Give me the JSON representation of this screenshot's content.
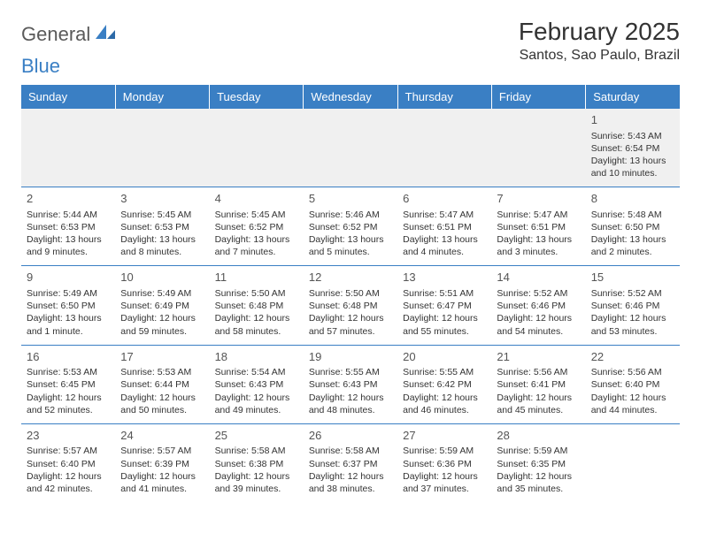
{
  "logo": {
    "text1": "General",
    "text2": "Blue"
  },
  "title": "February 2025",
  "location": "Santos, Sao Paulo, Brazil",
  "colors": {
    "header_bg": "#3a7fc4",
    "header_text": "#ffffff",
    "border": "#3a7fc4",
    "firstrow_bg": "#f0f0f0",
    "body_text": "#333333"
  },
  "day_headers": [
    "Sunday",
    "Monday",
    "Tuesday",
    "Wednesday",
    "Thursday",
    "Friday",
    "Saturday"
  ],
  "weeks": [
    [
      null,
      null,
      null,
      null,
      null,
      null,
      {
        "n": "1",
        "sr": "5:43 AM",
        "ss": "6:54 PM",
        "dl": "13 hours and 10 minutes."
      }
    ],
    [
      {
        "n": "2",
        "sr": "5:44 AM",
        "ss": "6:53 PM",
        "dl": "13 hours and 9 minutes."
      },
      {
        "n": "3",
        "sr": "5:45 AM",
        "ss": "6:53 PM",
        "dl": "13 hours and 8 minutes."
      },
      {
        "n": "4",
        "sr": "5:45 AM",
        "ss": "6:52 PM",
        "dl": "13 hours and 7 minutes."
      },
      {
        "n": "5",
        "sr": "5:46 AM",
        "ss": "6:52 PM",
        "dl": "13 hours and 5 minutes."
      },
      {
        "n": "6",
        "sr": "5:47 AM",
        "ss": "6:51 PM",
        "dl": "13 hours and 4 minutes."
      },
      {
        "n": "7",
        "sr": "5:47 AM",
        "ss": "6:51 PM",
        "dl": "13 hours and 3 minutes."
      },
      {
        "n": "8",
        "sr": "5:48 AM",
        "ss": "6:50 PM",
        "dl": "13 hours and 2 minutes."
      }
    ],
    [
      {
        "n": "9",
        "sr": "5:49 AM",
        "ss": "6:50 PM",
        "dl": "13 hours and 1 minute."
      },
      {
        "n": "10",
        "sr": "5:49 AM",
        "ss": "6:49 PM",
        "dl": "12 hours and 59 minutes."
      },
      {
        "n": "11",
        "sr": "5:50 AM",
        "ss": "6:48 PM",
        "dl": "12 hours and 58 minutes."
      },
      {
        "n": "12",
        "sr": "5:50 AM",
        "ss": "6:48 PM",
        "dl": "12 hours and 57 minutes."
      },
      {
        "n": "13",
        "sr": "5:51 AM",
        "ss": "6:47 PM",
        "dl": "12 hours and 55 minutes."
      },
      {
        "n": "14",
        "sr": "5:52 AM",
        "ss": "6:46 PM",
        "dl": "12 hours and 54 minutes."
      },
      {
        "n": "15",
        "sr": "5:52 AM",
        "ss": "6:46 PM",
        "dl": "12 hours and 53 minutes."
      }
    ],
    [
      {
        "n": "16",
        "sr": "5:53 AM",
        "ss": "6:45 PM",
        "dl": "12 hours and 52 minutes."
      },
      {
        "n": "17",
        "sr": "5:53 AM",
        "ss": "6:44 PM",
        "dl": "12 hours and 50 minutes."
      },
      {
        "n": "18",
        "sr": "5:54 AM",
        "ss": "6:43 PM",
        "dl": "12 hours and 49 minutes."
      },
      {
        "n": "19",
        "sr": "5:55 AM",
        "ss": "6:43 PM",
        "dl": "12 hours and 48 minutes."
      },
      {
        "n": "20",
        "sr": "5:55 AM",
        "ss": "6:42 PM",
        "dl": "12 hours and 46 minutes."
      },
      {
        "n": "21",
        "sr": "5:56 AM",
        "ss": "6:41 PM",
        "dl": "12 hours and 45 minutes."
      },
      {
        "n": "22",
        "sr": "5:56 AM",
        "ss": "6:40 PM",
        "dl": "12 hours and 44 minutes."
      }
    ],
    [
      {
        "n": "23",
        "sr": "5:57 AM",
        "ss": "6:40 PM",
        "dl": "12 hours and 42 minutes."
      },
      {
        "n": "24",
        "sr": "5:57 AM",
        "ss": "6:39 PM",
        "dl": "12 hours and 41 minutes."
      },
      {
        "n": "25",
        "sr": "5:58 AM",
        "ss": "6:38 PM",
        "dl": "12 hours and 39 minutes."
      },
      {
        "n": "26",
        "sr": "5:58 AM",
        "ss": "6:37 PM",
        "dl": "12 hours and 38 minutes."
      },
      {
        "n": "27",
        "sr": "5:59 AM",
        "ss": "6:36 PM",
        "dl": "12 hours and 37 minutes."
      },
      {
        "n": "28",
        "sr": "5:59 AM",
        "ss": "6:35 PM",
        "dl": "12 hours and 35 minutes."
      },
      null
    ]
  ],
  "labels": {
    "sunrise": "Sunrise:",
    "sunset": "Sunset:",
    "daylight": "Daylight:"
  }
}
